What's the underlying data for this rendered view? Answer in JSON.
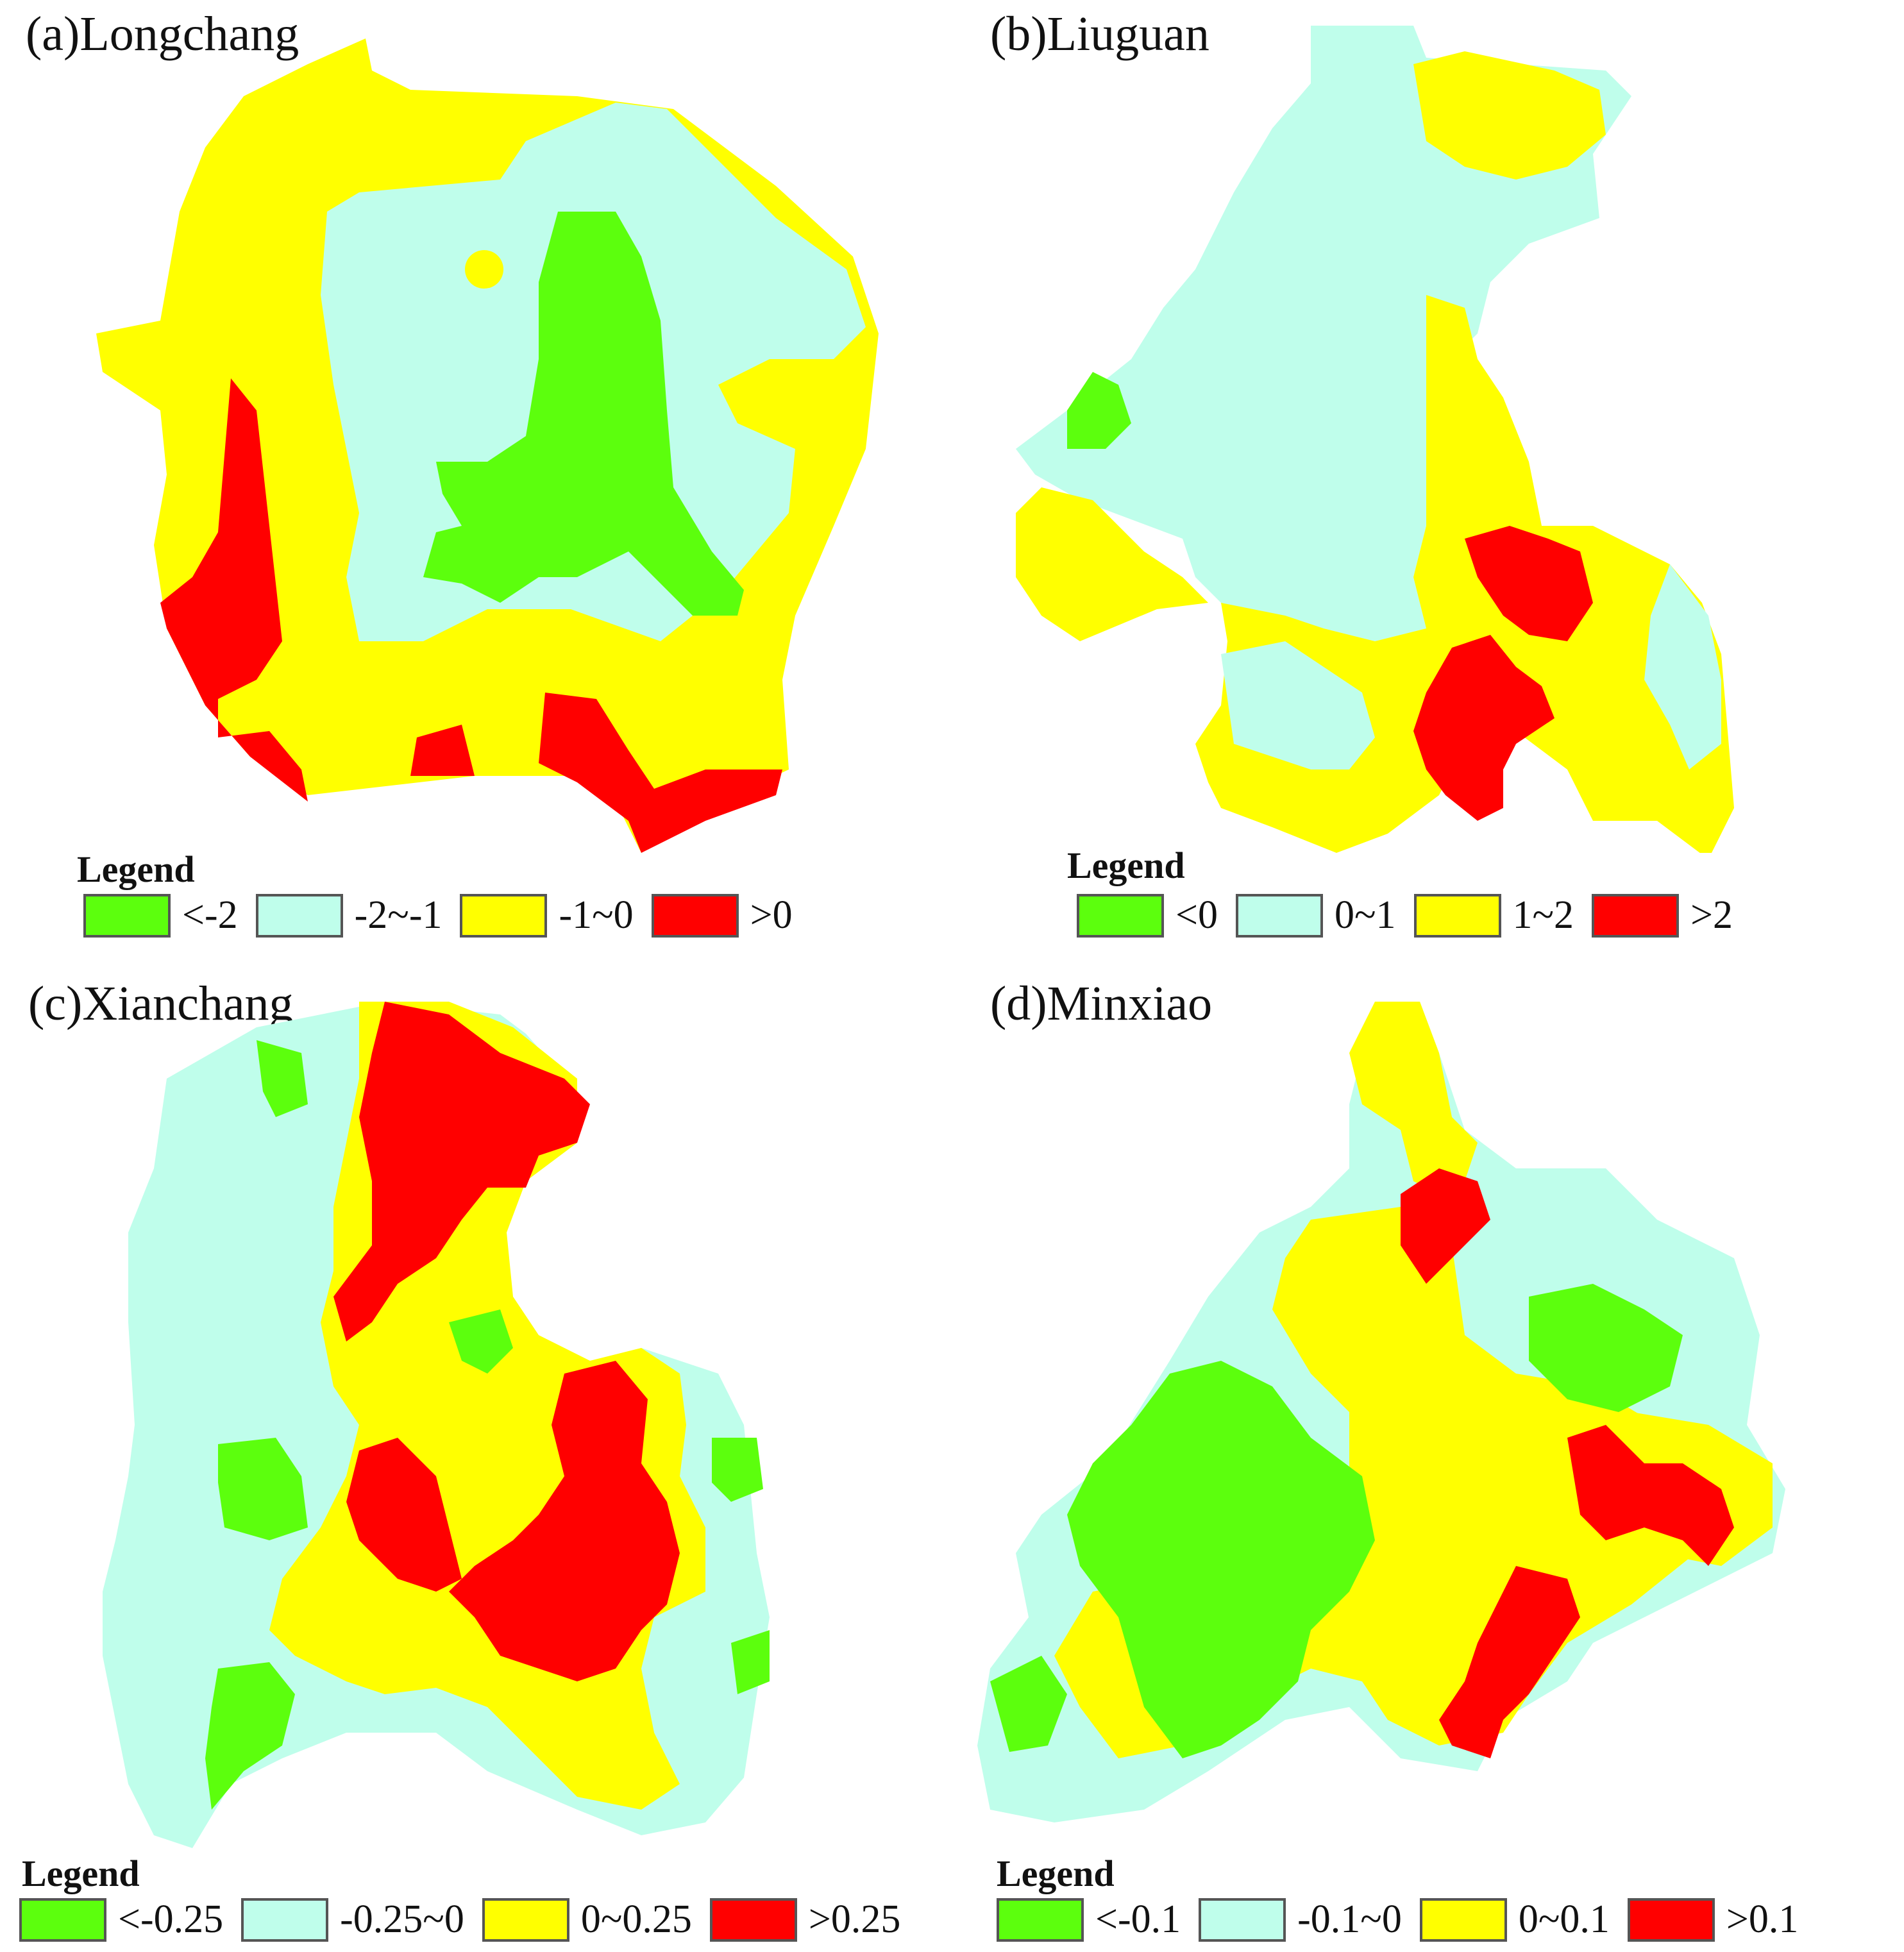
{
  "colors": {
    "green": "#5cff0d",
    "cyan": "#bffeeb",
    "yellow": "#ffff00",
    "red": "#ff0000"
  },
  "panels": [
    {
      "title": "(a)Longchang",
      "legend_title": "Legend",
      "legend": [
        {
          "label": "<-2",
          "color": "#5cff0d"
        },
        {
          "label": "-2~-1",
          "color": "#bffeeb"
        },
        {
          "label": "-1~0",
          "color": "#ffff00"
        },
        {
          "label": ">0",
          "color": "#ff0000"
        }
      ]
    },
    {
      "title": "(b)Liuguan",
      "legend_title": "Legend",
      "legend": [
        {
          "label": "<0",
          "color": "#5cff0d"
        },
        {
          "label": "0~1",
          "color": "#bffeeb"
        },
        {
          "label": "1~2",
          "color": "#ffff00"
        },
        {
          "label": ">2",
          "color": "#ff0000"
        }
      ]
    },
    {
      "title": "(c)Xianchang",
      "legend_title": "Legend",
      "legend": [
        {
          "label": "<-0.25",
          "color": "#5cff0d"
        },
        {
          "label": "-0.25~0",
          "color": "#bffeeb"
        },
        {
          "label": "0~0.25",
          "color": "#ffff00"
        },
        {
          "label": ">0.25",
          "color": "#ff0000"
        }
      ]
    },
    {
      "title": "(d)Minxiao",
      "legend_title": "Legend",
      "legend": [
        {
          "label": "<-0.1",
          "color": "#5cff0d"
        },
        {
          "label": "-0.1~0",
          "color": "#bffeeb"
        },
        {
          "label": "0~0.1",
          "color": "#ffff00"
        },
        {
          "label": ">0.1",
          "color": "#ff0000"
        }
      ]
    }
  ]
}
